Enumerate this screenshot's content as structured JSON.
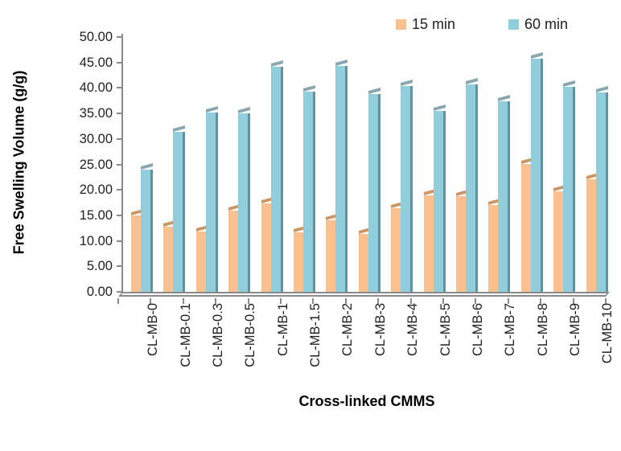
{
  "chart_data": {
    "type": "bar",
    "title": "",
    "xlabel": "Cross-linked CMMS",
    "ylabel": "Free Swelling Volume (g/g)",
    "categories": [
      "CL-MB-0",
      "CL-MB-0.1",
      "CL-MB-0.3",
      "CL-MB-0.5",
      "CL-MB-1",
      "CL-MB-1.5",
      "CL-MB-2",
      "CL-MB-3",
      "CL-MB-4",
      "CL-MB-5",
      "CL-MB-6",
      "CL-MB-7",
      "CL-MB-8",
      "CL-MB-9",
      "CL-MB-10"
    ],
    "series": [
      {
        "name": "15 min",
        "color": "#FAC090",
        "side_color": "#DB9A64",
        "cap_color": "#CC9763",
        "values": [
          15.0,
          12.8,
          11.8,
          16.0,
          17.4,
          11.7,
          14.1,
          11.4,
          16.4,
          18.9,
          18.8,
          17.1,
          25.0,
          19.7,
          22.1
        ]
      },
      {
        "name": "60 min",
        "color": "#92CDDC",
        "side_color": "#61929F",
        "cap_color": "#8AA6AF",
        "values": [
          24.0,
          31.4,
          35.2,
          35.0,
          44.1,
          39.3,
          44.3,
          38.8,
          40.3,
          35.5,
          40.7,
          37.4,
          45.7,
          40.2,
          39.1
        ]
      }
    ],
    "ylim": [
      0,
      50
    ],
    "ytick_step": 5,
    "ytick_labels": [
      "50.00",
      "45.00",
      "40.00",
      "35.00",
      "30.00",
      "25.00",
      "20.00",
      "15.00",
      "10.00",
      "5.00",
      "0.00"
    ],
    "grid": false,
    "legend_position": "top",
    "axis_color": "#8a8a8a"
  }
}
